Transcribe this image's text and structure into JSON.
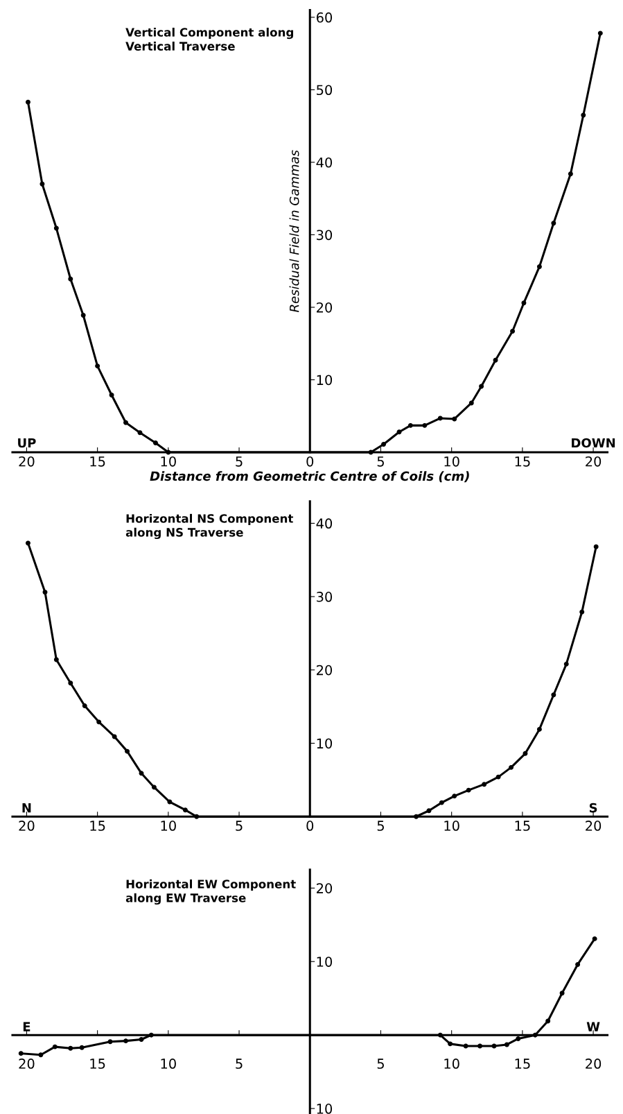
{
  "chart_data": [
    {
      "type": "line",
      "title": "Vertical Component along\nVertical Traverse",
      "xlabel": "Distance from Geometric Centre of Coils (cm)",
      "ylabel": "Residual Field in Gammas",
      "marker": "circle",
      "annotations": [
        "UP",
        "DOWN"
      ],
      "xlim": [
        -21,
        21
      ],
      "ylim": [
        0,
        61
      ],
      "xticks": [
        {
          "value": -20,
          "label": "20"
        },
        {
          "value": -15,
          "label": "15"
        },
        {
          "value": -10,
          "label": "10"
        },
        {
          "value": -5,
          "label": "5"
        },
        0,
        5,
        10,
        15,
        20
      ],
      "yticks": [
        10,
        20,
        30,
        40,
        50,
        60
      ],
      "series": [
        {
          "color": "#000000",
          "x": [
            -19.9,
            -18.9,
            -17.9,
            -16.9,
            -16.0,
            -15.0,
            -14.0,
            -13.0,
            -12.0,
            -10.9,
            -10.0,
            4.3,
            5.2,
            6.3,
            7.1,
            8.1,
            9.2,
            10.2,
            11.4,
            12.1,
            13.1,
            14.3,
            15.1,
            16.2,
            17.2,
            18.4,
            19.3,
            20.5
          ],
          "values": [
            48.3,
            37.0,
            30.9,
            23.9,
            18.9,
            11.9,
            7.9,
            4.1,
            2.7,
            1.3,
            0,
            0,
            1.1,
            2.8,
            3.7,
            3.7,
            4.7,
            4.6,
            6.8,
            9.1,
            12.7,
            16.7,
            20.6,
            25.6,
            31.6,
            38.4,
            46.5,
            57.8
          ]
        }
      ]
    },
    {
      "type": "line",
      "title": "Horizontal NS Component\nalong NS Traverse",
      "marker": "circle",
      "annotations": [
        "N",
        "S"
      ],
      "xlim": [
        -21,
        21
      ],
      "ylim": [
        0,
        43
      ],
      "xticks": [
        {
          "value": -20,
          "label": "20"
        },
        {
          "value": -15,
          "label": "15"
        },
        {
          "value": -10,
          "label": "10"
        },
        {
          "value": -5,
          "label": "5"
        },
        0,
        5,
        10,
        15,
        20
      ],
      "yticks": [
        10,
        20,
        30,
        40
      ],
      "series": [
        {
          "color": "#000000",
          "x": [
            -19.9,
            -18.7,
            -17.9,
            -16.9,
            -15.9,
            -14.9,
            -13.8,
            -12.9,
            -11.9,
            -11.0,
            -9.9,
            -8.8,
            -8.0,
            7.5,
            8.4,
            9.3,
            10.2,
            11.2,
            12.3,
            13.3,
            14.2,
            15.2,
            16.2,
            17.2,
            18.1,
            19.2,
            20.2
          ],
          "values": [
            37.3,
            30.6,
            21.4,
            18.2,
            15.1,
            12.9,
            10.9,
            8.9,
            5.9,
            4.0,
            2.0,
            0.9,
            0,
            0,
            0.8,
            1.9,
            2.8,
            3.6,
            4.4,
            5.4,
            6.7,
            8.6,
            11.9,
            16.6,
            20.8,
            27.9,
            36.8
          ]
        }
      ]
    },
    {
      "type": "line",
      "title": "Horizontal EW Component\nalong EW Traverse",
      "marker": "circle",
      "annotations": [
        "E",
        "W"
      ],
      "xlim": [
        -21,
        21
      ],
      "ylim": [
        -10.7,
        22.5
      ],
      "xticks": [
        {
          "value": -20,
          "label": "20"
        },
        {
          "value": -15,
          "label": "15"
        },
        {
          "value": -10,
          "label": "10"
        },
        {
          "value": -5,
          "label": "5"
        },
        5,
        10,
        15,
        20
      ],
      "yticks": [
        {
          "value": -10,
          "label": "10"
        },
        10,
        20
      ],
      "series": [
        {
          "color": "#000000",
          "x": [
            -20.4,
            -19.0,
            -18.0,
            -16.9,
            -16.1,
            -14.1,
            -13.0,
            -11.9,
            -11.2,
            9.2,
            9.9,
            11.0,
            12.0,
            13.0,
            13.9,
            14.7,
            15.9,
            16.8,
            17.8,
            18.9,
            20.1
          ],
          "values": [
            -2.5,
            -2.7,
            -1.6,
            -1.8,
            -1.7,
            -0.9,
            -0.8,
            -0.6,
            0,
            0,
            -1.2,
            -1.5,
            -1.5,
            -1.5,
            -1.3,
            -0.5,
            0,
            1.9,
            5.7,
            9.6,
            13.1
          ]
        }
      ]
    }
  ]
}
